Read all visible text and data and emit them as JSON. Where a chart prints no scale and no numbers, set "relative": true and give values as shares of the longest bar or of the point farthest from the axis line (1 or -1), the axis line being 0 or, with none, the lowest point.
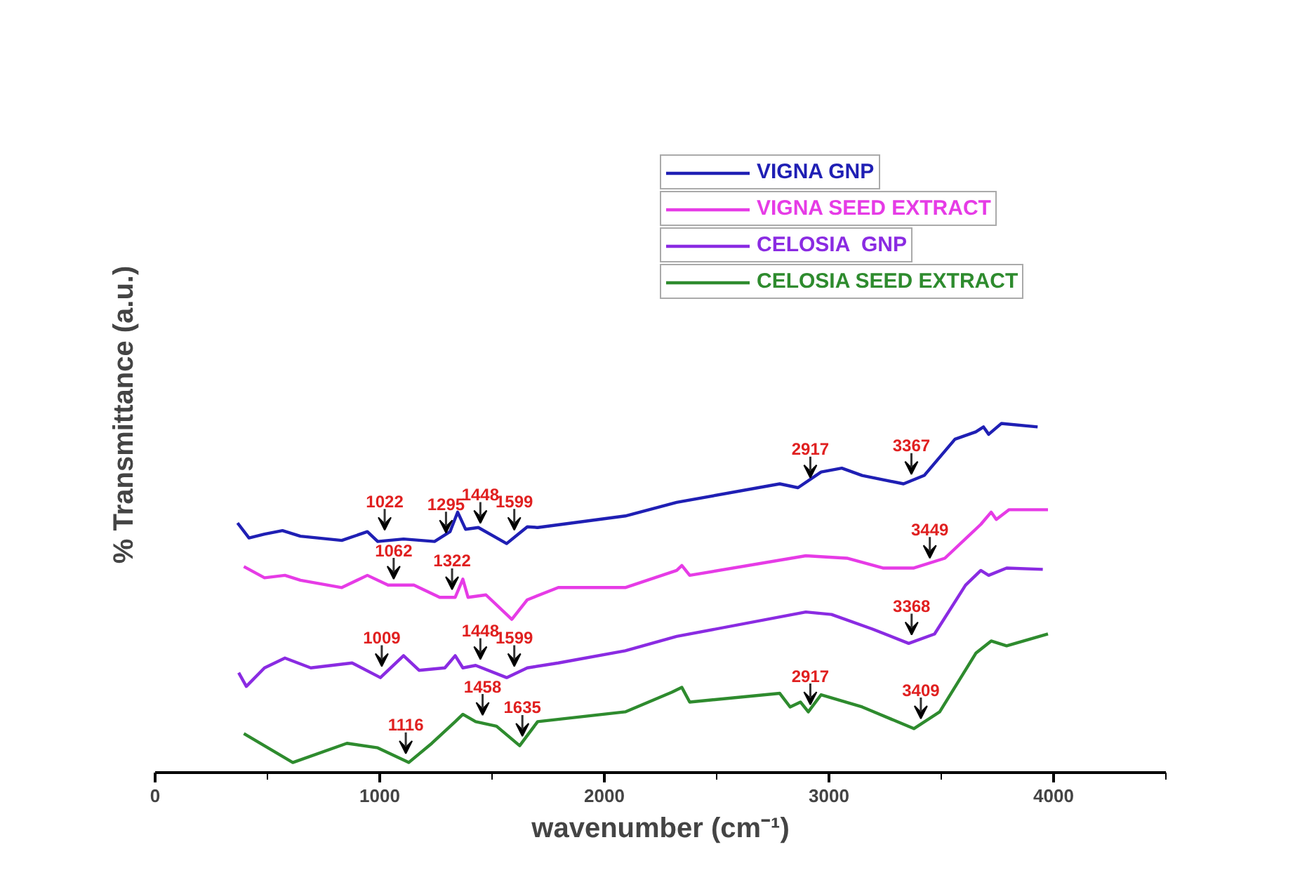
{
  "chart_data": {
    "type": "line",
    "relative": true,
    "xlabel": "wavenumber (cm⁻¹)",
    "ylabel": "% Transmittance (a.u.)",
    "xlim": [
      0,
      4500
    ],
    "xticks": [
      0,
      1000,
      2000,
      3000,
      4000
    ],
    "legend": "top right",
    "grid": false,
    "marker": "none",
    "line_style": "solid",
    "series": [
      {
        "name": "VIGNA GNP",
        "color": "#1f1fb4",
        "x": [
          367,
          418,
          487,
          567,
          647,
          831,
          945,
          991,
          1106,
          1244,
          1313,
          1347,
          1382,
          1439,
          1565,
          1657,
          1703,
          2093,
          2322,
          2781,
          2862,
          2965,
          3057,
          3148,
          3332,
          3424,
          3561,
          3654,
          3688,
          3711,
          3768,
          3929
        ],
        "values": [
          0.715,
          0.672,
          0.683,
          0.693,
          0.677,
          0.665,
          0.69,
          0.662,
          0.669,
          0.662,
          0.69,
          0.746,
          0.697,
          0.702,
          0.656,
          0.704,
          0.702,
          0.735,
          0.774,
          0.827,
          0.816,
          0.861,
          0.872,
          0.851,
          0.827,
          0.851,
          0.955,
          0.976,
          0.99,
          0.969,
          1.0,
          0.99
        ]
      },
      {
        "name": "VIGNA SEED EXTRACT",
        "color": "#e63be6",
        "x": [
          395,
          487,
          578,
          647,
          831,
          945,
          1037,
          1152,
          1267,
          1336,
          1370,
          1393,
          1473,
          1588,
          1657,
          1795,
          2093,
          2322,
          2345,
          2380,
          2897,
          3080,
          3240,
          3378,
          3516,
          3676,
          3722,
          3745,
          3802,
          3975
        ],
        "values": [
          0.59,
          0.558,
          0.565,
          0.551,
          0.53,
          0.565,
          0.537,
          0.537,
          0.502,
          0.502,
          0.554,
          0.502,
          0.509,
          0.439,
          0.495,
          0.53,
          0.53,
          0.579,
          0.593,
          0.565,
          0.621,
          0.614,
          0.586,
          0.586,
          0.614,
          0.711,
          0.746,
          0.725,
          0.753,
          0.753
        ]
      },
      {
        "name": "CELOSIA  GNP",
        "color": "#8a2be2",
        "x": [
          372,
          406,
          487,
          578,
          693,
          877,
          1003,
          1106,
          1175,
          1290,
          1336,
          1370,
          1427,
          1565,
          1657,
          1795,
          2093,
          2322,
          2897,
          3011,
          3194,
          3355,
          3470,
          3608,
          3676,
          3711,
          3791,
          3952
        ],
        "values": [
          0.286,
          0.247,
          0.3,
          0.328,
          0.3,
          0.314,
          0.272,
          0.335,
          0.293,
          0.3,
          0.335,
          0.3,
          0.307,
          0.272,
          0.3,
          0.314,
          0.349,
          0.39,
          0.46,
          0.453,
          0.411,
          0.37,
          0.397,
          0.537,
          0.579,
          0.565,
          0.586,
          0.582
        ]
      },
      {
        "name": "CELOSIA SEED EXTRACT",
        "color": "#2e8b2e",
        "x": [
          395,
          613,
          854,
          991,
          1129,
          1232,
          1336,
          1370,
          1427,
          1520,
          1623,
          1703,
          2093,
          2300,
          2345,
          2380,
          2781,
          2827,
          2873,
          2908,
          2965,
          3148,
          3378,
          3493,
          3654,
          3722,
          3791,
          3975
        ],
        "values": [
          0.112,
          0.029,
          0.084,
          0.071,
          0.029,
          0.084,
          0.146,
          0.167,
          0.146,
          0.133,
          0.077,
          0.146,
          0.174,
          0.23,
          0.244,
          0.202,
          0.227,
          0.188,
          0.202,
          0.174,
          0.223,
          0.188,
          0.126,
          0.174,
          0.342,
          0.377,
          0.363,
          0.397
        ]
      }
    ],
    "annotations": [
      {
        "text": "1022",
        "x": 1022,
        "y": 0.67
      },
      {
        "text": "1295",
        "x": 1295,
        "y": 0.662
      },
      {
        "text": "1448",
        "x": 1448,
        "y": 0.69
      },
      {
        "text": "1599",
        "x": 1599,
        "y": 0.67
      },
      {
        "text": "2917",
        "x": 2917,
        "y": 0.82
      },
      {
        "text": "3367",
        "x": 3367,
        "y": 0.83
      },
      {
        "text": "1062",
        "x": 1062,
        "y": 0.53
      },
      {
        "text": "1322",
        "x": 1322,
        "y": 0.5
      },
      {
        "text": "3449",
        "x": 3449,
        "y": 0.59
      },
      {
        "text": "1009",
        "x": 1009,
        "y": 0.28
      },
      {
        "text": "1448",
        "x": 1448,
        "y": 0.3
      },
      {
        "text": "1599",
        "x": 1599,
        "y": 0.28
      },
      {
        "text": "3368",
        "x": 3368,
        "y": 0.37
      },
      {
        "text": "1116",
        "x": 1116,
        "y": 0.03
      },
      {
        "text": "1458",
        "x": 1458,
        "y": 0.14
      },
      {
        "text": "1635",
        "x": 1635,
        "y": 0.08
      },
      {
        "text": "2917",
        "x": 2917,
        "y": 0.17
      },
      {
        "text": "3409",
        "x": 3409,
        "y": 0.13
      }
    ]
  }
}
